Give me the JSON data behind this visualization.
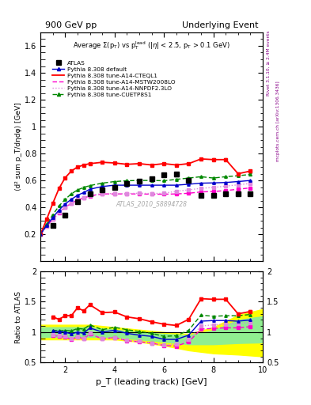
{
  "title_left": "900 GeV pp",
  "title_right": "Underlying Event",
  "ylabel_main": "⟨d² sum p_T/dηdφ⟩ [GeV]",
  "ylabel_ratio": "Ratio to ATLAS",
  "xlabel": "p_T (leading track) [GeV]",
  "watermark": "ATLAS_2010_S8894728",
  "right_label_top": "Rivet 3.1.10, ≥ 2.4M events",
  "right_label_bot": "mcplots.cern.ch [arXiv:1306.3436]",
  "ylim_main": [
    0.0,
    1.7
  ],
  "ylim_ratio": [
    0.5,
    2.0
  ],
  "xlim": [
    1.0,
    10.0
  ],
  "atlas_x": [
    1.5,
    2.0,
    2.5,
    3.0,
    3.5,
    4.0,
    4.5,
    5.0,
    5.5,
    6.0,
    6.5,
    7.0,
    7.5,
    8.0,
    8.5,
    9.0,
    9.5
  ],
  "atlas_y": [
    0.265,
    0.345,
    0.445,
    0.5,
    0.53,
    0.55,
    0.575,
    0.595,
    0.61,
    0.64,
    0.645,
    0.6,
    0.49,
    0.49,
    0.5,
    0.5,
    0.5
  ],
  "atlas_yerr": [
    0.012,
    0.01,
    0.01,
    0.009,
    0.009,
    0.009,
    0.009,
    0.009,
    0.009,
    0.012,
    0.012,
    0.012,
    0.012,
    0.012,
    0.012,
    0.012,
    0.012
  ],
  "default_x": [
    1.0,
    1.25,
    1.5,
    1.75,
    2.0,
    2.25,
    2.5,
    2.75,
    3.0,
    3.5,
    4.0,
    4.5,
    5.0,
    5.5,
    6.0,
    6.5,
    7.0,
    7.5,
    8.0,
    8.5,
    9.0,
    9.5
  ],
  "default_y": [
    0.2,
    0.265,
    0.325,
    0.38,
    0.425,
    0.46,
    0.49,
    0.51,
    0.535,
    0.555,
    0.565,
    0.565,
    0.565,
    0.565,
    0.565,
    0.565,
    0.572,
    0.58,
    0.582,
    0.585,
    0.592,
    0.6
  ],
  "default_yerr": [
    0.003,
    0.003,
    0.003,
    0.003,
    0.003,
    0.003,
    0.003,
    0.003,
    0.003,
    0.003,
    0.003,
    0.003,
    0.003,
    0.003,
    0.003,
    0.003,
    0.003,
    0.003,
    0.003,
    0.003,
    0.003,
    0.003
  ],
  "cteq_x": [
    1.0,
    1.25,
    1.5,
    1.75,
    2.0,
    2.25,
    2.5,
    2.75,
    3.0,
    3.5,
    4.0,
    4.5,
    5.0,
    5.5,
    6.0,
    6.5,
    7.0,
    7.5,
    8.0,
    8.5,
    9.0,
    9.5
  ],
  "cteq_y": [
    0.2,
    0.31,
    0.43,
    0.54,
    0.62,
    0.67,
    0.7,
    0.715,
    0.725,
    0.735,
    0.73,
    0.72,
    0.725,
    0.715,
    0.725,
    0.715,
    0.725,
    0.76,
    0.755,
    0.755,
    0.65,
    0.67
  ],
  "cteq_yerr": [
    0.004,
    0.004,
    0.004,
    0.004,
    0.004,
    0.004,
    0.004,
    0.004,
    0.004,
    0.004,
    0.004,
    0.004,
    0.004,
    0.004,
    0.004,
    0.004,
    0.007,
    0.008,
    0.009,
    0.009,
    0.009,
    0.009
  ],
  "mstw_x": [
    1.0,
    1.25,
    1.5,
    1.75,
    2.0,
    2.25,
    2.5,
    2.75,
    3.0,
    3.5,
    4.0,
    4.5,
    5.0,
    5.5,
    6.0,
    6.5,
    7.0,
    7.5,
    8.0,
    8.5,
    9.0,
    9.5
  ],
  "mstw_y": [
    0.2,
    0.258,
    0.31,
    0.36,
    0.4,
    0.43,
    0.455,
    0.47,
    0.485,
    0.5,
    0.5,
    0.5,
    0.5,
    0.498,
    0.498,
    0.5,
    0.505,
    0.515,
    0.518,
    0.525,
    0.535,
    0.545
  ],
  "nnpdf_x": [
    1.0,
    1.25,
    1.5,
    1.75,
    2.0,
    2.25,
    2.5,
    2.75,
    3.0,
    3.5,
    4.0,
    4.5,
    5.0,
    5.5,
    6.0,
    6.5,
    7.0,
    7.5,
    8.0,
    8.5,
    9.0,
    9.5
  ],
  "nnpdf_y": [
    0.2,
    0.258,
    0.315,
    0.363,
    0.403,
    0.432,
    0.458,
    0.473,
    0.488,
    0.503,
    0.503,
    0.503,
    0.505,
    0.503,
    0.505,
    0.52,
    0.53,
    0.542,
    0.548,
    0.558,
    0.568,
    0.578
  ],
  "cuetp_x": [
    1.0,
    1.25,
    1.5,
    1.75,
    2.0,
    2.25,
    2.5,
    2.75,
    3.0,
    3.5,
    4.0,
    4.5,
    5.0,
    5.5,
    6.0,
    6.5,
    7.0,
    7.5,
    8.0,
    8.5,
    9.0,
    9.5
  ],
  "cuetp_y": [
    0.2,
    0.275,
    0.345,
    0.41,
    0.46,
    0.5,
    0.53,
    0.548,
    0.562,
    0.58,
    0.592,
    0.598,
    0.6,
    0.6,
    0.598,
    0.608,
    0.618,
    0.628,
    0.618,
    0.628,
    0.635,
    0.645
  ],
  "cuetp_yerr": [
    0.003,
    0.003,
    0.003,
    0.003,
    0.003,
    0.003,
    0.003,
    0.003,
    0.003,
    0.003,
    0.003,
    0.003,
    0.003,
    0.003,
    0.003,
    0.003,
    0.004,
    0.004,
    0.005,
    0.005,
    0.006,
    0.007
  ],
  "ratio_default_x": [
    1.5,
    1.75,
    2.0,
    2.25,
    2.5,
    2.75,
    3.0,
    3.5,
    4.0,
    4.5,
    5.0,
    5.5,
    6.0,
    6.5,
    7.0,
    7.5,
    8.0,
    8.5,
    9.0,
    9.5
  ],
  "ratio_default_y": [
    1.02,
    1.01,
    1.0,
    0.97,
    1.0,
    0.98,
    1.07,
    1.0,
    1.03,
    0.98,
    0.95,
    0.93,
    0.88,
    0.88,
    0.95,
    1.18,
    1.19,
    1.19,
    1.18,
    1.2
  ],
  "ratio_cteq_x": [
    1.5,
    1.75,
    2.0,
    2.25,
    2.5,
    2.75,
    3.0,
    3.5,
    4.0,
    4.5,
    5.0,
    5.5,
    6.0,
    6.5,
    7.0,
    7.5,
    8.0,
    8.5,
    9.0,
    9.5
  ],
  "ratio_cteq_y": [
    1.25,
    1.21,
    1.27,
    1.27,
    1.4,
    1.35,
    1.45,
    1.32,
    1.33,
    1.25,
    1.22,
    1.17,
    1.13,
    1.11,
    1.21,
    1.55,
    1.54,
    1.54,
    1.3,
    1.34
  ],
  "ratio_cteq_yerr": [
    0.015,
    0.012,
    0.01,
    0.01,
    0.01,
    0.01,
    0.01,
    0.01,
    0.01,
    0.01,
    0.01,
    0.012,
    0.012,
    0.012,
    0.015,
    0.02,
    0.022,
    0.022,
    0.02,
    0.02
  ],
  "ratio_mstw_x": [
    1.5,
    1.75,
    2.0,
    2.25,
    2.5,
    2.75,
    3.0,
    3.5,
    4.0,
    4.5,
    5.0,
    5.5,
    6.0,
    6.5,
    7.0,
    7.5,
    8.0,
    8.5,
    9.0,
    9.5
  ],
  "ratio_mstw_y": [
    0.95,
    0.93,
    0.92,
    0.88,
    0.92,
    0.89,
    0.97,
    0.89,
    0.91,
    0.86,
    0.84,
    0.82,
    0.78,
    0.77,
    0.84,
    1.05,
    1.06,
    1.07,
    1.07,
    1.09
  ],
  "ratio_nnpdf_x": [
    1.5,
    1.75,
    2.0,
    2.25,
    2.5,
    2.75,
    3.0,
    3.5,
    4.0,
    4.5,
    5.0,
    5.5,
    6.0,
    6.5,
    7.0,
    7.5,
    8.0,
    8.5,
    9.0,
    9.5
  ],
  "ratio_nnpdf_y": [
    0.96,
    0.94,
    0.93,
    0.89,
    0.92,
    0.9,
    0.98,
    0.9,
    0.91,
    0.87,
    0.85,
    0.82,
    0.79,
    0.8,
    0.88,
    1.1,
    1.12,
    1.13,
    1.14,
    1.16
  ],
  "ratio_cuetp_x": [
    1.5,
    1.75,
    2.0,
    2.25,
    2.5,
    2.75,
    3.0,
    3.5,
    4.0,
    4.5,
    5.0,
    5.5,
    6.0,
    6.5,
    7.0,
    7.5,
    8.0,
    8.5,
    9.0,
    9.5
  ],
  "ratio_cuetp_y": [
    1.03,
    1.02,
    1.03,
    1.02,
    1.06,
    1.05,
    1.12,
    1.04,
    1.08,
    1.04,
    1.01,
    0.98,
    0.93,
    0.94,
    1.03,
    1.28,
    1.26,
    1.27,
    1.27,
    1.29
  ],
  "band_yellow_x": [
    1.0,
    2.0,
    3.0,
    4.0,
    5.0,
    6.0,
    6.5,
    7.0,
    8.0,
    9.0,
    10.0
  ],
  "band_yellow_low": [
    0.88,
    0.88,
    0.88,
    0.88,
    0.84,
    0.78,
    0.74,
    0.7,
    0.65,
    0.63,
    0.6
  ],
  "band_yellow_high": [
    1.12,
    1.12,
    1.12,
    1.08,
    1.04,
    1.0,
    0.98,
    0.97,
    1.08,
    1.28,
    1.38
  ],
  "band_green_x": [
    1.0,
    2.0,
    3.0,
    4.0,
    5.0,
    6.0,
    6.5,
    7.0,
    8.0,
    9.0,
    10.0
  ],
  "band_green_low": [
    0.92,
    0.92,
    0.92,
    0.92,
    0.88,
    0.84,
    0.82,
    0.8,
    0.8,
    0.82,
    0.83
  ],
  "band_green_high": [
    1.08,
    1.08,
    1.08,
    1.04,
    1.0,
    0.97,
    0.96,
    0.95,
    1.03,
    1.2,
    1.26
  ],
  "color_atlas": "#000000",
  "color_default": "#0000cc",
  "color_cteq": "#ff0000",
  "color_mstw": "#ff00cc",
  "color_nnpdf": "#dd88dd",
  "color_cuetp": "#008800"
}
